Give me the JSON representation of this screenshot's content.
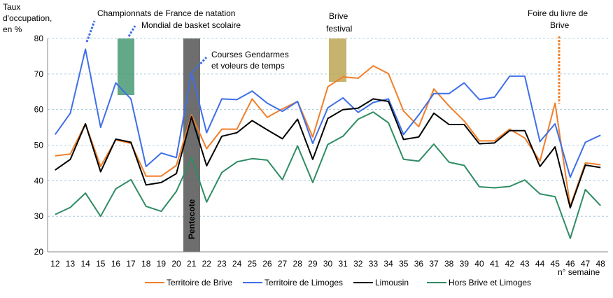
{
  "chart_data": {
    "type": "line",
    "ylabel": [
      "Taux",
      "d'occupation,",
      "en %"
    ],
    "xlabel": "n° semaine",
    "ylim": [
      20,
      80
    ],
    "yticks": [
      20,
      30,
      40,
      50,
      60,
      70,
      80
    ],
    "grid": true,
    "legend_position": "bottom",
    "x": [
      12,
      13,
      14,
      15,
      16,
      17,
      18,
      19,
      20,
      21,
      22,
      23,
      24,
      25,
      26,
      27,
      28,
      29,
      30,
      31,
      32,
      33,
      34,
      35,
      36,
      37,
      38,
      39,
      40,
      41,
      42,
      43,
      44,
      45,
      46,
      47,
      48
    ],
    "series": [
      {
        "name": "Territoire de Brive",
        "color": "#f07f2a",
        "values": [
          47,
          47.5,
          56,
          44,
          51.5,
          50.5,
          41.3,
          41.3,
          44.3,
          58.5,
          49,
          54.5,
          54.5,
          63,
          57.8,
          60.2,
          62.3,
          52.3,
          66.4,
          69.2,
          68.8,
          72.3,
          70.1,
          59.6,
          55.2,
          65.8,
          61,
          56.8,
          51.2,
          51.2,
          54.5,
          52,
          45.5,
          61.8,
          32.8,
          45,
          44.5
        ]
      },
      {
        "name": "Territoire de Limoges",
        "color": "#3f6fe8",
        "values": [
          53,
          59,
          77,
          55,
          67.5,
          63,
          44,
          47.8,
          46.5,
          70.5,
          53.5,
          63,
          62.8,
          65.2,
          61.8,
          59.5,
          62.3,
          50.5,
          60.5,
          63.3,
          59.2,
          62,
          63,
          53,
          58.5,
          64.5,
          64.5,
          67.5,
          62.8,
          63.5,
          69.4,
          69.4,
          51,
          56,
          41,
          50.8,
          52.8
        ]
      },
      {
        "name": "Limousin",
        "color": "#000000",
        "values": [
          43,
          46,
          56,
          42.5,
          51.7,
          50.8,
          38.8,
          39.5,
          42,
          58,
          44.2,
          52.5,
          53.5,
          56.9,
          54.3,
          51.8,
          57.3,
          46,
          57.5,
          60,
          60.4,
          63,
          62.3,
          51.6,
          52.3,
          59,
          55.8,
          55.8,
          50.4,
          50.6,
          54.1,
          54.1,
          44,
          49.5,
          32.4,
          44.4,
          43.7
        ]
      },
      {
        "name": "Hors Brive et Limoges",
        "color": "#2f8c62",
        "values": [
          30.5,
          32.5,
          36.5,
          30,
          37.7,
          40.3,
          32.8,
          31.4,
          37,
          46.5,
          34,
          42.3,
          45.3,
          46.2,
          45.8,
          40.3,
          49.8,
          39.5,
          50.2,
          52.5,
          57.3,
          59.3,
          56.3,
          46,
          45.5,
          50.3,
          45.2,
          44.3,
          38.3,
          38,
          38.4,
          40.2,
          36.3,
          35.5,
          23.8,
          37.5,
          33
        ]
      }
    ],
    "events": [
      {
        "label": "Championnats de France de natation",
        "week": 14
      },
      {
        "label": "Mondial de basket scolaire",
        "week": 17
      },
      {
        "label": "Courses Gendarmes",
        "label2": "et voleurs de temps",
        "week": 21
      },
      {
        "label": "Brive",
        "label2": "festival",
        "week": 30.5
      },
      {
        "label": "Foire du livre de",
        "label2": "Brive",
        "week": 45
      },
      {
        "label": "Pentecote",
        "week": 21
      }
    ]
  }
}
